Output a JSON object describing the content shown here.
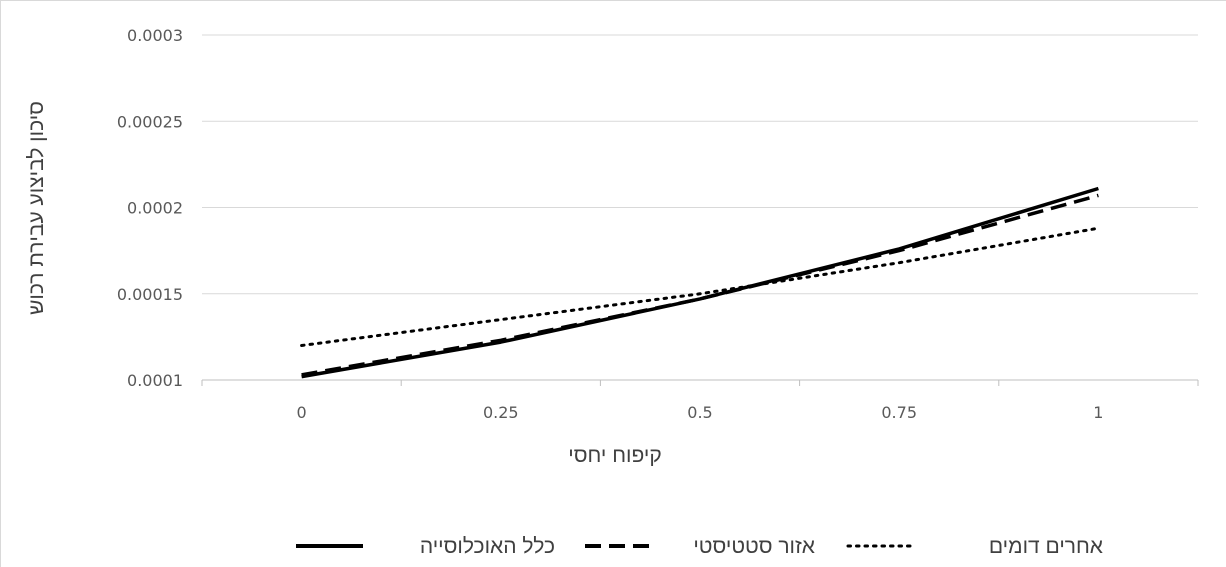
{
  "chart_data": {
    "type": "line",
    "title": "",
    "xlabel": "קיפוח יחסי",
    "ylabel": "סיכון לביצוע עבירת רכוש",
    "x": [
      0,
      0.25,
      0.5,
      0.75,
      1
    ],
    "x_tick_labels": [
      "0",
      "0.25",
      "0.5",
      "0.75",
      "1"
    ],
    "xlim": [
      -0.125,
      1.125
    ],
    "ylim": [
      0.0001,
      0.0003
    ],
    "y_ticks": [
      0.0001,
      0.00015,
      0.0002,
      0.00025,
      0.0003
    ],
    "y_tick_labels": [
      "0.0001",
      "0.00015",
      "0.0002",
      "0.00025",
      "0.0003"
    ],
    "grid": "horizontal",
    "legend_position": "bottom",
    "series": [
      {
        "name": "כלל האוכלוסייה",
        "style": "solid",
        "color": "#000000",
        "values": [
          0.000102,
          0.000122,
          0.000147,
          0.000176,
          0.000211
        ]
      },
      {
        "name": "אזור סטטיסטי",
        "style": "dashed",
        "color": "#000000",
        "values": [
          0.000103,
          0.000123,
          0.000147,
          0.000175,
          0.000207
        ]
      },
      {
        "name": "אחרים דומים",
        "style": "dotted",
        "color": "#000000",
        "values": [
          0.00012,
          0.000135,
          0.00015,
          0.000168,
          0.000188
        ]
      }
    ]
  }
}
